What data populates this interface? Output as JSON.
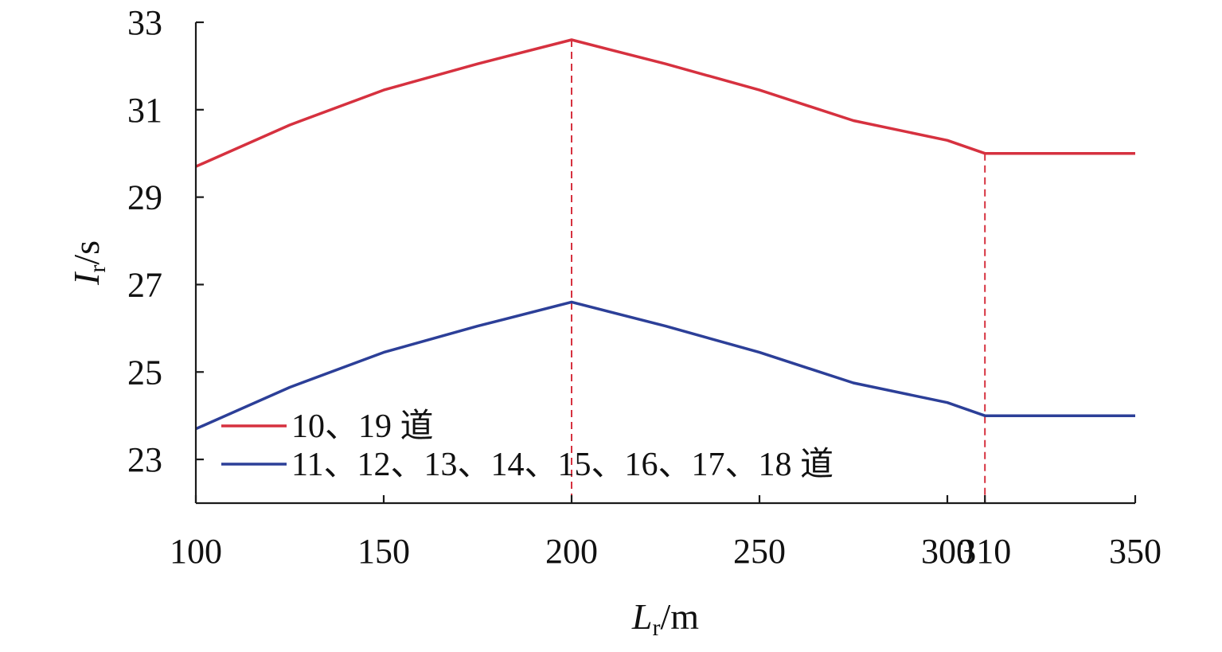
{
  "chart_data": {
    "type": "line",
    "title": "",
    "xlabel": {
      "main": "L",
      "sub": "r",
      "unit": "/m"
    },
    "ylabel": {
      "main": "I",
      "sub": "r",
      "unit": "/s"
    },
    "xlim": [
      100,
      350
    ],
    "ylim": [
      22,
      33
    ],
    "xticks": [
      {
        "value": 100,
        "label": "100",
        "highlight": false
      },
      {
        "value": 150,
        "label": "150",
        "highlight": false
      },
      {
        "value": 200,
        "label": "200",
        "highlight": false
      },
      {
        "value": 250,
        "label": "250",
        "highlight": false
      },
      {
        "value": 300,
        "label": "300",
        "highlight": false
      },
      {
        "value": 310,
        "label": "310",
        "highlight": true
      },
      {
        "value": 350,
        "label": "350",
        "highlight": false
      }
    ],
    "yticks": [
      {
        "value": 23,
        "label": "23"
      },
      {
        "value": 25,
        "label": "25"
      },
      {
        "value": 27,
        "label": "27"
      },
      {
        "value": 29,
        "label": "29"
      },
      {
        "value": 31,
        "label": "31"
      },
      {
        "value": 33,
        "label": "33"
      }
    ],
    "reference_lines_x": [
      200,
      310
    ],
    "grid": false,
    "legend_position": "bottom-left",
    "series": [
      {
        "name": "10、19 道",
        "color": "#d6313f",
        "points": [
          [
            100,
            29.7
          ],
          [
            125,
            30.65
          ],
          [
            150,
            31.45
          ],
          [
            175,
            32.05
          ],
          [
            200,
            32.6
          ],
          [
            225,
            32.05
          ],
          [
            250,
            31.45
          ],
          [
            275,
            30.75
          ],
          [
            300,
            30.3
          ],
          [
            310,
            30.0
          ],
          [
            350,
            30.0
          ]
        ]
      },
      {
        "name": "11、12、13、14、15、16、17、18 道",
        "color": "#2c3f98",
        "points": [
          [
            100,
            23.7
          ],
          [
            125,
            24.65
          ],
          [
            150,
            25.45
          ],
          [
            175,
            26.05
          ],
          [
            200,
            26.6
          ],
          [
            225,
            26.05
          ],
          [
            250,
            25.45
          ],
          [
            275,
            24.75
          ],
          [
            300,
            24.3
          ],
          [
            310,
            24.0
          ],
          [
            350,
            24.0
          ]
        ]
      }
    ],
    "colors": {
      "axis": "#1a1a1a",
      "highlight_tick": "#d6313f",
      "reference_line": "#d6313f"
    }
  }
}
